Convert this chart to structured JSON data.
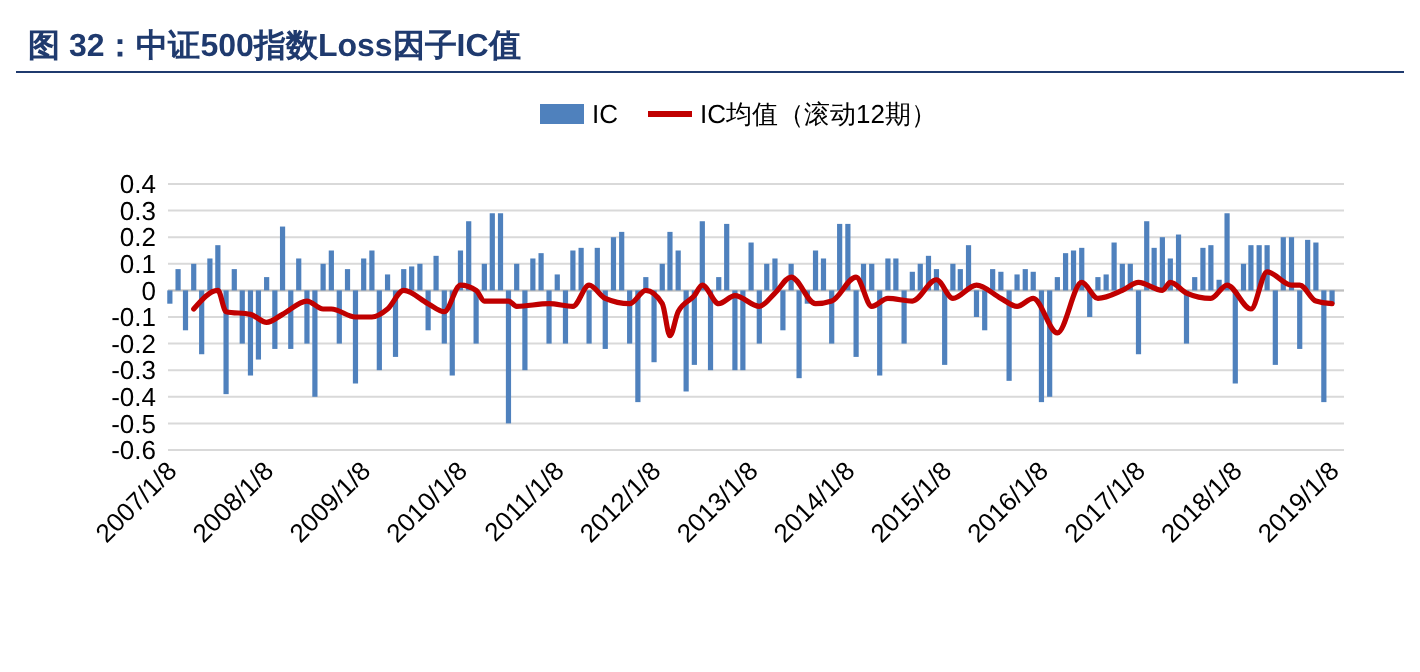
{
  "chart_data": {
    "type": "bar",
    "title": "图 32：中证500指数Loss因子IC值",
    "x": [
      "2007-01",
      "2007-02",
      "2007-03",
      "2007-04",
      "2007-05",
      "2007-06",
      "2007-07",
      "2007-08",
      "2007-09",
      "2007-10",
      "2007-11",
      "2007-12",
      "2008-01",
      "2008-02",
      "2008-03",
      "2008-04",
      "2008-05",
      "2008-06",
      "2008-07",
      "2008-08",
      "2008-09",
      "2008-10",
      "2008-11",
      "2008-12",
      "2009-01",
      "2009-02",
      "2009-03",
      "2009-04",
      "2009-05",
      "2009-06",
      "2009-07",
      "2009-08",
      "2009-09",
      "2009-10",
      "2009-11",
      "2009-12",
      "2010-01",
      "2010-02",
      "2010-03",
      "2010-04",
      "2010-05",
      "2010-06",
      "2010-07",
      "2010-08",
      "2010-09",
      "2010-10",
      "2010-11",
      "2010-12",
      "2011-01",
      "2011-02",
      "2011-03",
      "2011-04",
      "2011-05",
      "2011-06",
      "2011-07",
      "2011-08",
      "2011-09",
      "2011-10",
      "2011-11",
      "2011-12",
      "2012-01",
      "2012-02",
      "2012-03",
      "2012-04",
      "2012-05",
      "2012-06",
      "2012-07",
      "2012-08",
      "2012-09",
      "2012-10",
      "2012-11",
      "2012-12",
      "2013-01",
      "2013-02",
      "2013-03",
      "2013-04",
      "2013-05",
      "2013-06",
      "2013-07",
      "2013-08",
      "2013-09",
      "2013-10",
      "2013-11",
      "2013-12",
      "2014-01",
      "2014-02",
      "2014-03",
      "2014-04",
      "2014-05",
      "2014-06",
      "2014-07",
      "2014-08",
      "2014-09",
      "2014-10",
      "2014-11",
      "2014-12",
      "2015-01",
      "2015-02",
      "2015-03",
      "2015-04",
      "2015-05",
      "2015-06",
      "2015-07",
      "2015-08",
      "2015-09",
      "2015-10",
      "2015-11",
      "2015-12",
      "2016-01",
      "2016-02",
      "2016-03",
      "2016-04",
      "2016-05",
      "2016-06",
      "2016-07",
      "2016-08",
      "2016-09",
      "2016-10",
      "2016-11",
      "2016-12",
      "2017-01",
      "2017-02",
      "2017-03",
      "2017-04",
      "2017-05",
      "2017-06",
      "2017-07",
      "2017-08",
      "2017-09",
      "2017-10",
      "2017-11",
      "2017-12",
      "2018-01",
      "2018-02",
      "2018-03",
      "2018-04",
      "2018-05",
      "2018-06",
      "2018-07",
      "2018-08",
      "2018-09",
      "2018-10",
      "2018-11",
      "2018-12",
      "2019-01"
    ],
    "series": [
      {
        "name": "IC",
        "color": "#4f81bd",
        "values": [
          -0.05,
          0.08,
          -0.15,
          0.1,
          -0.24,
          0.12,
          0.17,
          -0.39,
          0.08,
          -0.2,
          -0.32,
          -0.26,
          0.05,
          -0.22,
          0.24,
          -0.22,
          0.12,
          -0.2,
          -0.4,
          0.1,
          0.15,
          -0.2,
          0.08,
          -0.35,
          0.12,
          0.15,
          -0.3,
          0.06,
          -0.25,
          0.08,
          0.09,
          0.1,
          -0.15,
          0.13,
          -0.2,
          -0.32,
          0.15,
          0.26,
          -0.2,
          0.1,
          0.29,
          0.29,
          -0.5,
          0.1,
          -0.3,
          0.12,
          0.14,
          -0.2,
          0.06,
          -0.2,
          0.15,
          0.16,
          -0.2,
          0.16,
          -0.22,
          0.2,
          0.22,
          -0.2,
          -0.42,
          0.05,
          -0.27,
          0.1,
          0.22,
          0.15,
          -0.38,
          -0.28,
          0.26,
          -0.3,
          0.05,
          0.25,
          -0.3,
          -0.3,
          0.18,
          -0.2,
          0.1,
          0.12,
          -0.15,
          0.1,
          -0.33,
          -0.05,
          0.15,
          0.12,
          -0.2,
          0.25,
          0.25,
          -0.25,
          0.1,
          0.1,
          -0.32,
          0.12,
          0.12,
          -0.2,
          0.07,
          0.1,
          0.13,
          0.08,
          -0.28,
          0.1,
          0.08,
          0.17,
          -0.1,
          -0.15,
          0.08,
          0.07,
          -0.34,
          0.06,
          0.08,
          0.07,
          -0.42,
          -0.4,
          0.05,
          0.14,
          0.15,
          0.16,
          -0.1,
          0.05,
          0.06,
          0.18,
          0.1,
          0.1,
          -0.24,
          0.26,
          0.16,
          0.2,
          0.12,
          0.21,
          -0.2,
          0.05,
          0.16,
          0.17,
          0.04,
          0.29,
          -0.35,
          0.1,
          0.17,
          0.17,
          0.17,
          -0.28,
          0.2,
          0.2,
          -0.22,
          0.19,
          0.18,
          -0.42,
          -0.05
        ]
      },
      {
        "name": "IC均值（滚动12期）",
        "type": "line",
        "color": "#c00000",
        "x": [
          "2007-04",
          "2007-07",
          "2007-08",
          "2007-11",
          "2008-01",
          "2008-03",
          "2008-06",
          "2008-08",
          "2008-09",
          "2008-12",
          "2009-02",
          "2009-04",
          "2009-06",
          "2009-09",
          "2009-11",
          "2010-01",
          "2010-03",
          "2010-04",
          "2010-07",
          "2010-08",
          "2010-12",
          "2011-03",
          "2011-05",
          "2011-07",
          "2011-10",
          "2011-12",
          "2012-02",
          "2012-03",
          "2012-04",
          "2012-06",
          "2012-07",
          "2012-09",
          "2012-11",
          "2013-02",
          "2013-04",
          "2013-06",
          "2013-09",
          "2013-11",
          "2014-02",
          "2014-04",
          "2014-06",
          "2014-09",
          "2014-12",
          "2015-02",
          "2015-05",
          "2015-08",
          "2015-10",
          "2015-12",
          "2016-03",
          "2016-06",
          "2016-08",
          "2016-11",
          "2017-01",
          "2017-04",
          "2017-05",
          "2017-07",
          "2017-10",
          "2017-12",
          "2018-03",
          "2018-05",
          "2018-08",
          "2018-09",
          "2018-11",
          "2019-01"
        ],
        "values": [
          -0.07,
          0,
          -0.08,
          -0.09,
          -0.12,
          -0.09,
          -0.04,
          -0.07,
          -0.07,
          -0.1,
          -0.1,
          -0.07,
          0,
          -0.05,
          -0.08,
          0.02,
          0,
          -0.04,
          -0.04,
          -0.06,
          -0.05,
          -0.06,
          0.02,
          -0.03,
          -0.05,
          0,
          -0.05,
          -0.17,
          -0.08,
          -0.02,
          0.02,
          -0.05,
          -0.02,
          -0.06,
          -0.01,
          0.05,
          -0.05,
          -0.04,
          0.05,
          -0.06,
          -0.03,
          -0.04,
          0.04,
          -0.03,
          0.02,
          -0.03,
          -0.06,
          -0.03,
          -0.16,
          0.03,
          -0.03,
          0,
          0.03,
          0,
          0.03,
          -0.01,
          -0.03,
          0.02,
          -0.07,
          0.07,
          0.02,
          0.02,
          -0.04,
          -0.05
        ]
      }
    ],
    "xlim": [
      "2006-12-25",
      "2019-02-15"
    ],
    "xticks": [
      {
        "value": "2007-01-08",
        "label": "2007/1/8"
      },
      {
        "value": "2008-01-08",
        "label": "2008/1/8"
      },
      {
        "value": "2009-01-08",
        "label": "2009/1/8"
      },
      {
        "value": "2010-01-08",
        "label": "2010/1/8"
      },
      {
        "value": "2011-01-08",
        "label": "2011/1/8"
      },
      {
        "value": "2012-01-08",
        "label": "2012/1/8"
      },
      {
        "value": "2013-01-08",
        "label": "2013/1/8"
      },
      {
        "value": "2014-01-08",
        "label": "2014/1/8"
      },
      {
        "value": "2015-01-08",
        "label": "2015/1/8"
      },
      {
        "value": "2016-01-08",
        "label": "2016/1/8"
      },
      {
        "value": "2017-01-08",
        "label": "2017/1/8"
      },
      {
        "value": "2018-01-08",
        "label": "2018/1/8"
      },
      {
        "value": "2019-01-08",
        "label": "2019/1/8"
      }
    ],
    "ylim": [
      -0.6,
      0.4
    ],
    "yticks": [
      -0.6,
      -0.5,
      -0.4,
      -0.3,
      -0.2,
      -0.1,
      0,
      0.1,
      0.2,
      0.3,
      0.4
    ],
    "grid": "y",
    "legend": "top"
  }
}
